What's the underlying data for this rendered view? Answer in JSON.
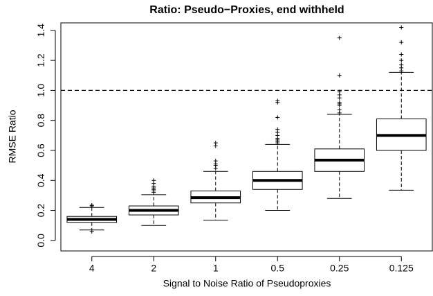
{
  "chart_data": {
    "type": "box",
    "title": "Ratio: Pseudo−Proxies, end withheld",
    "xlabel": "Signal to Noise Ratio of Pseudoproxies",
    "ylabel": "RMSE Ratio",
    "categories": [
      "4",
      "2",
      "1",
      "0.5",
      "0.25",
      "0.125"
    ],
    "boxes": [
      {
        "whisker_low": 0.07,
        "q1": 0.12,
        "median": 0.14,
        "q3": 0.16,
        "whisker_high": 0.22,
        "outliers": [
          0.06,
          0.23,
          0.235
        ]
      },
      {
        "whisker_low": 0.1,
        "q1": 0.17,
        "median": 0.2,
        "q3": 0.23,
        "whisker_high": 0.305,
        "outliers": [
          0.32,
          0.33,
          0.34,
          0.35,
          0.36,
          0.38,
          0.4
        ]
      },
      {
        "whisker_low": 0.135,
        "q1": 0.25,
        "median": 0.285,
        "q3": 0.33,
        "whisker_high": 0.46,
        "outliers": [
          0.48,
          0.5,
          0.51,
          0.53,
          0.63,
          0.65
        ]
      },
      {
        "whisker_low": 0.2,
        "q1": 0.34,
        "median": 0.4,
        "q3": 0.46,
        "whisker_high": 0.64,
        "outliers": [
          0.65,
          0.66,
          0.67,
          0.68,
          0.7,
          0.72,
          0.74,
          0.82,
          0.92,
          0.93
        ]
      },
      {
        "whisker_low": 0.28,
        "q1": 0.46,
        "median": 0.535,
        "q3": 0.61,
        "whisker_high": 0.84,
        "outliers": [
          0.85,
          0.87,
          0.9,
          0.91,
          0.92,
          0.95,
          0.97,
          0.99,
          1.1,
          1.35
        ]
      },
      {
        "whisker_low": 0.335,
        "q1": 0.6,
        "median": 0.7,
        "q3": 0.81,
        "whisker_high": 1.12,
        "outliers": [
          1.13,
          1.15,
          1.17,
          1.2,
          1.24,
          1.32,
          1.42
        ]
      }
    ],
    "reference_line": 1.0,
    "ylim": [
      -0.07,
      1.45
    ],
    "yticks": [
      {
        "value": 0,
        "label": "0.0"
      },
      0.2,
      0.4,
      0.6,
      0.8,
      {
        "value": 1,
        "label": "1.0"
      },
      1.2,
      1.4
    ],
    "color": "#000000"
  }
}
